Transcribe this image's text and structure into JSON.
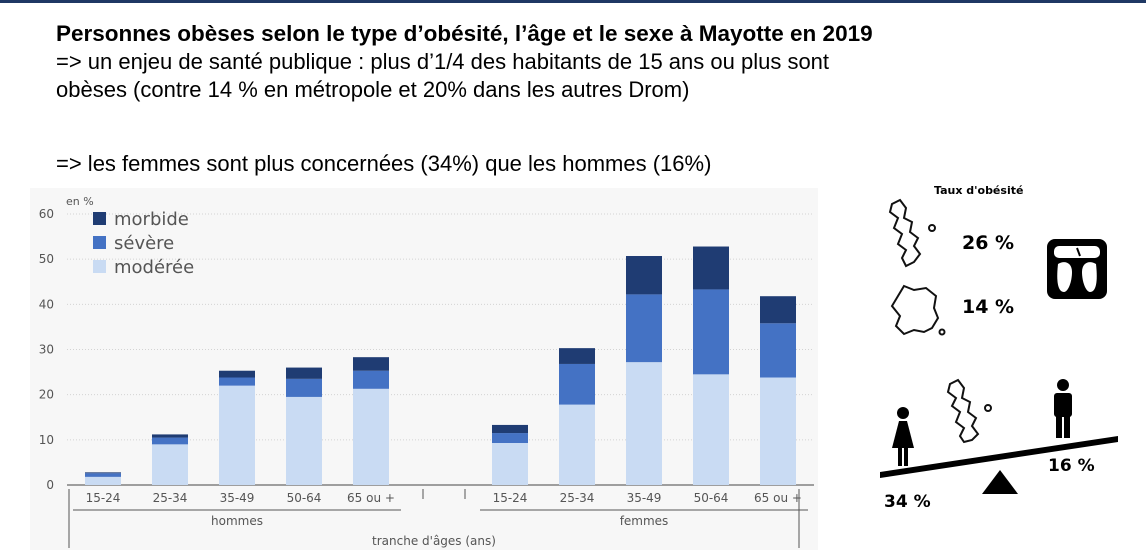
{
  "header": {
    "title": "Personnes obèses selon le type d’obésité, l’âge et le sexe à Mayotte en 2019",
    "line1": "=> un enjeu de santé publique : plus d’1/4 des habitants de 15 ans ou plus sont",
    "line2": "obèses (contre 14 % en métropole et 20% dans les autres Drom)",
    "line3": "=> les femmes sont plus concernées (34%) que les hommes (16%)"
  },
  "chart_data": {
    "type": "bar",
    "stacked": true,
    "unit_label": "en %",
    "ylim": [
      0,
      60
    ],
    "yticks": [
      0,
      10,
      20,
      30,
      40,
      50,
      60
    ],
    "categories": [
      "15-24",
      "25-34",
      "35-49",
      "50-64",
      "65 ou +"
    ],
    "groups": [
      "hommes",
      "femmes"
    ],
    "xlabel": "tranche d'âges (ans)",
    "legend_position": "top-left",
    "series": [
      {
        "name": "modérée",
        "color": "#c9dbf3",
        "hommes": [
          1.8,
          9,
          22,
          19.5,
          21.3
        ],
        "femmes": [
          9.3,
          17.8,
          27.2,
          24.5,
          23.8
        ]
      },
      {
        "name": "sévère",
        "color": "#4472c4",
        "hommes": [
          0.8,
          1.5,
          1.8,
          4,
          4
        ],
        "femmes": [
          2.2,
          9,
          15,
          18.8,
          12
        ]
      },
      {
        "name": "morbide",
        "color": "#1f3c73",
        "hommes": [
          0.2,
          0.7,
          1.5,
          2.5,
          3
        ],
        "femmes": [
          1.8,
          3.5,
          8.5,
          9.5,
          6
        ]
      }
    ]
  },
  "side_panel": {
    "title": "Taux d'obésité",
    "mayotte_rate": "26 %",
    "france_rate": "14 %",
    "women_rate": "34 %",
    "men_rate": "16 %",
    "icons": [
      "mayotte-map-icon",
      "france-map-icon",
      "scale-icon",
      "woman-icon",
      "man-icon",
      "balance-icon"
    ]
  }
}
